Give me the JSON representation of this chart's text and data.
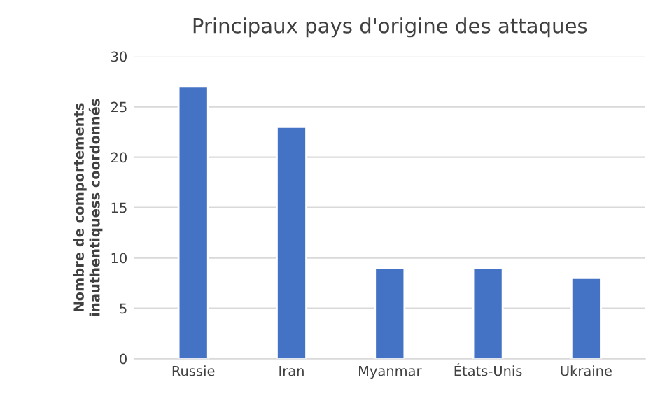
{
  "chart_data": {
    "type": "bar",
    "title": "Principaux pays d'origine des attaques",
    "ylabel": "Nombre de comportements\ninauthentiquess coordonnés",
    "categories": [
      "Russie",
      "Iran",
      "Myanmar",
      "États-Unis",
      "Ukraine"
    ],
    "values": [
      27,
      23,
      9,
      9,
      8
    ],
    "color": "#4472c4",
    "ylim": [
      0,
      30
    ],
    "yticks": [
      0,
      5,
      10,
      15,
      20,
      25,
      30
    ],
    "grid": "y"
  }
}
